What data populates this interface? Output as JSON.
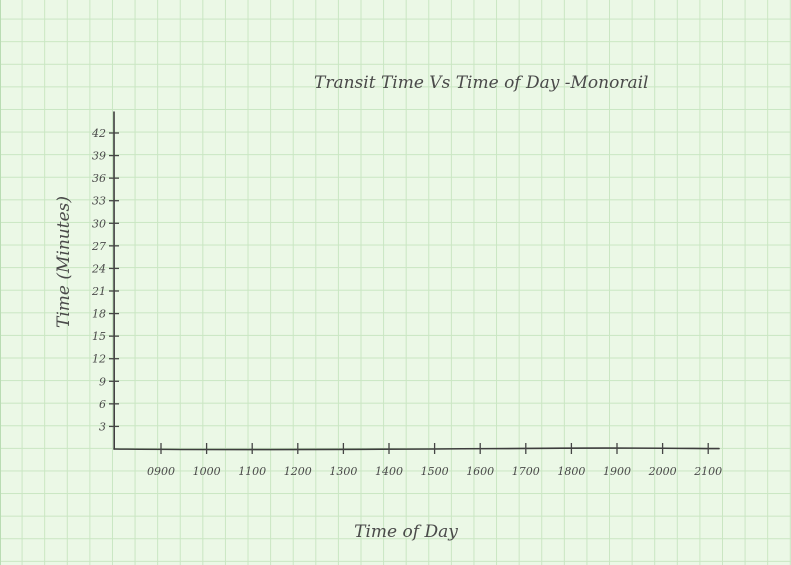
{
  "chart_data": {
    "type": "scatter",
    "title": "Transit Time Vs Time of Day -Monorail",
    "xlabel": "Time of Day",
    "ylabel": "Time (Minutes)",
    "x_ticks": [
      "0900",
      "1000",
      "1100",
      "1200",
      "1300",
      "1400",
      "1500",
      "1600",
      "1700",
      "1800",
      "1900",
      "2000",
      "2100"
    ],
    "y_ticks": [
      3,
      6,
      9,
      12,
      15,
      18,
      21,
      24,
      27,
      30,
      33,
      36,
      39,
      42
    ],
    "ylim": [
      0,
      42
    ],
    "grid": true,
    "series": []
  }
}
